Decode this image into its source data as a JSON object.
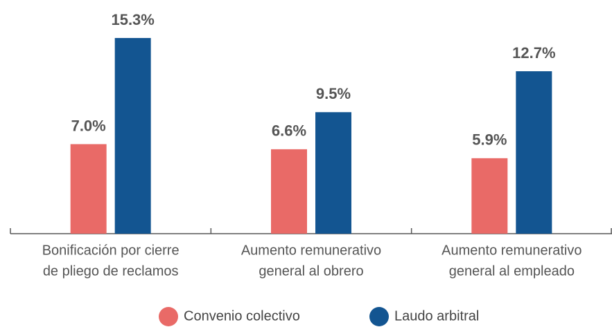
{
  "chart_data": {
    "type": "bar",
    "categories": [
      [
        "Bonificación por cierre",
        "de pliego de reclamos"
      ],
      [
        "Aumento remunerativo",
        "general al obrero"
      ],
      [
        "Aumento remunerativo",
        "general al empleado"
      ]
    ],
    "series": [
      {
        "name": "Convenio colectivo",
        "color": "#e96a67",
        "values": [
          7.0,
          6.6,
          5.9
        ],
        "value_labels": [
          "7.0%",
          "6.6%",
          "5.9%"
        ]
      },
      {
        "name": "Laudo arbitral",
        "color": "#135591",
        "values": [
          15.3,
          9.5,
          12.7
        ],
        "value_labels": [
          "15.3%",
          "9.5%",
          "12.7%"
        ]
      }
    ],
    "ylim": [
      0,
      18
    ]
  }
}
